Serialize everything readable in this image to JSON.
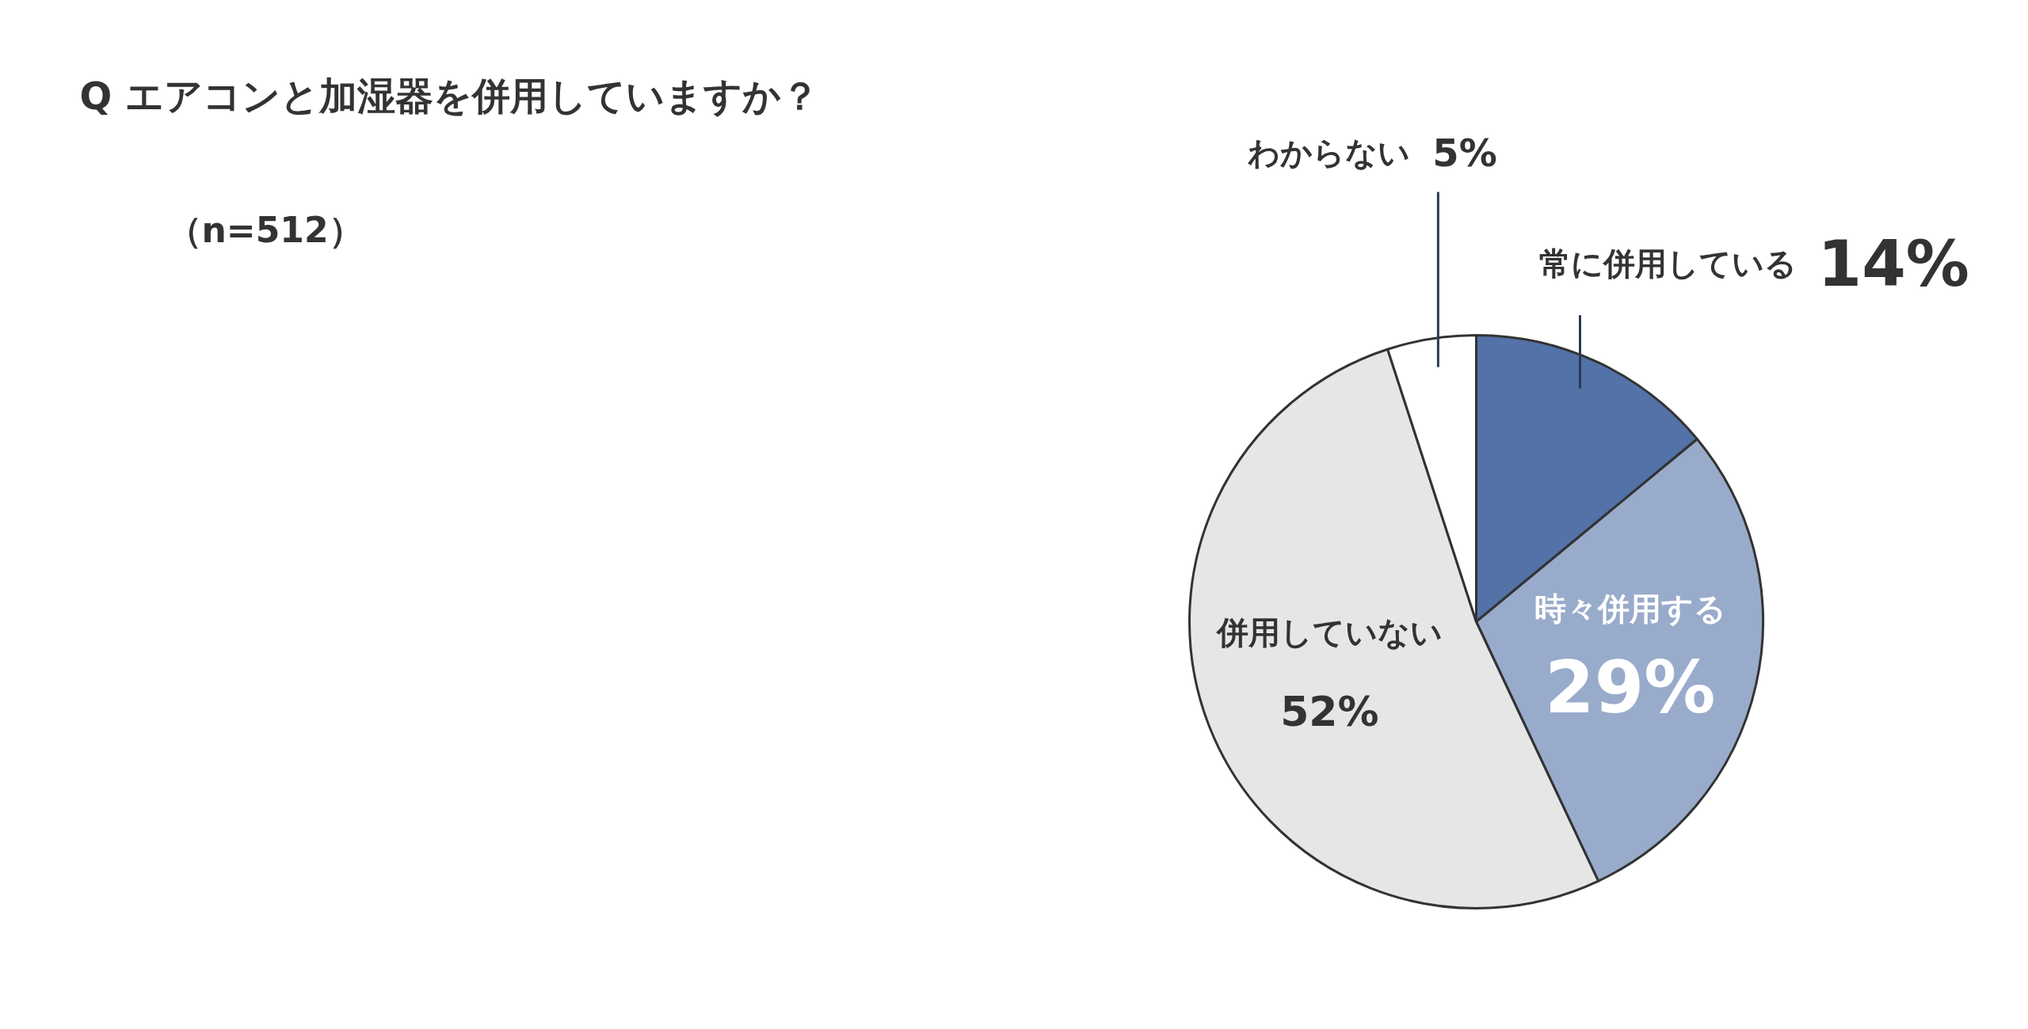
{
  "chart_data": {
    "type": "pie",
    "title": "Q エアコンと加湿器を併用していますか？",
    "subtitle": "（n=512）",
    "categories": [
      "常に併用している",
      "時々併用する",
      "併用していない",
      "わからない"
    ],
    "values": [
      14,
      29,
      52,
      5
    ],
    "colors": [
      "#5272a8",
      "#99abcb",
      "#e6e6e6",
      "#ffffff"
    ],
    "value_labels": [
      "14%",
      "29%",
      "52%",
      "5%"
    ]
  }
}
